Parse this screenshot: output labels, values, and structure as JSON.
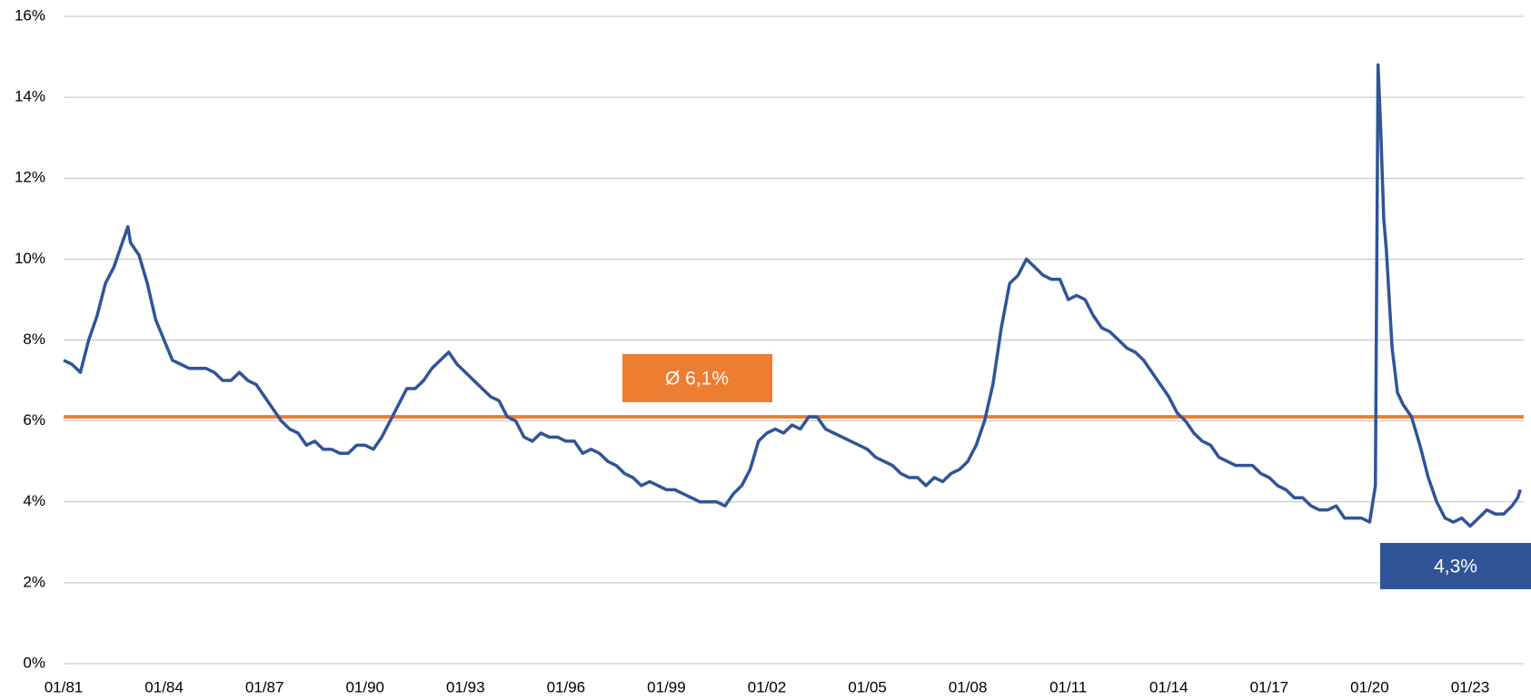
{
  "chart_data": {
    "type": "line",
    "x": [
      1981.0,
      1981.25,
      1981.5,
      1981.75,
      1982.0,
      1982.25,
      1982.5,
      1982.75,
      1982.92,
      1983.0,
      1983.25,
      1983.5,
      1983.75,
      1984.0,
      1984.25,
      1984.5,
      1984.75,
      1985.0,
      1985.25,
      1985.5,
      1985.75,
      1986.0,
      1986.25,
      1986.5,
      1986.75,
      1987.0,
      1987.25,
      1987.5,
      1987.75,
      1988.0,
      1988.25,
      1988.5,
      1988.75,
      1989.0,
      1989.25,
      1989.5,
      1989.75,
      1990.0,
      1990.25,
      1990.5,
      1990.75,
      1991.0,
      1991.25,
      1991.5,
      1991.75,
      1992.0,
      1992.25,
      1992.5,
      1992.75,
      1993.0,
      1993.25,
      1993.5,
      1993.75,
      1994.0,
      1994.25,
      1994.5,
      1994.75,
      1995.0,
      1995.25,
      1995.5,
      1995.75,
      1996.0,
      1996.25,
      1996.5,
      1996.75,
      1997.0,
      1997.25,
      1997.5,
      1997.75,
      1998.0,
      1998.25,
      1998.5,
      1998.75,
      1999.0,
      1999.25,
      1999.5,
      1999.75,
      2000.0,
      2000.25,
      2000.5,
      2000.75,
      2001.0,
      2001.25,
      2001.5,
      2001.75,
      2002.0,
      2002.25,
      2002.5,
      2002.75,
      2003.0,
      2003.25,
      2003.5,
      2003.75,
      2004.0,
      2004.25,
      2004.5,
      2004.75,
      2005.0,
      2005.25,
      2005.5,
      2005.75,
      2006.0,
      2006.25,
      2006.5,
      2006.75,
      2007.0,
      2007.25,
      2007.5,
      2007.75,
      2008.0,
      2008.25,
      2008.5,
      2008.75,
      2009.0,
      2009.25,
      2009.5,
      2009.75,
      2010.0,
      2010.25,
      2010.5,
      2010.75,
      2011.0,
      2011.25,
      2011.5,
      2011.75,
      2012.0,
      2012.25,
      2012.5,
      2012.75,
      2013.0,
      2013.25,
      2013.5,
      2013.75,
      2014.0,
      2014.25,
      2014.5,
      2014.75,
      2015.0,
      2015.25,
      2015.5,
      2015.75,
      2016.0,
      2016.25,
      2016.5,
      2016.75,
      2017.0,
      2017.25,
      2017.5,
      2017.75,
      2018.0,
      2018.25,
      2018.5,
      2018.75,
      2019.0,
      2019.25,
      2019.5,
      2019.75,
      2020.0,
      2020.17,
      2020.25,
      2020.33,
      2020.42,
      2020.5,
      2020.67,
      2020.83,
      2021.0,
      2021.25,
      2021.5,
      2021.75,
      2022.0,
      2022.25,
      2022.5,
      2022.75,
      2023.0,
      2023.25,
      2023.5,
      2023.75,
      2024.0,
      2024.25,
      2024.42,
      2024.5
    ],
    "series": [
      {
        "color": "#2f5597",
        "values": [
          7.5,
          7.4,
          7.2,
          8.0,
          8.6,
          9.4,
          9.8,
          10.4,
          10.8,
          10.4,
          10.1,
          9.4,
          8.5,
          8.0,
          7.5,
          7.4,
          7.3,
          7.3,
          7.3,
          7.2,
          7.0,
          7.0,
          7.2,
          7.0,
          6.9,
          6.6,
          6.3,
          6.0,
          5.8,
          5.7,
          5.4,
          5.5,
          5.3,
          5.3,
          5.2,
          5.2,
          5.4,
          5.4,
          5.3,
          5.6,
          6.0,
          6.4,
          6.8,
          6.8,
          7.0,
          7.3,
          7.5,
          7.7,
          7.4,
          7.2,
          7.0,
          6.8,
          6.6,
          6.5,
          6.1,
          6.0,
          5.6,
          5.5,
          5.7,
          5.6,
          5.6,
          5.5,
          5.5,
          5.2,
          5.3,
          5.2,
          5.0,
          4.9,
          4.7,
          4.6,
          4.4,
          4.5,
          4.4,
          4.3,
          4.3,
          4.2,
          4.1,
          4.0,
          4.0,
          4.0,
          3.9,
          4.2,
          4.4,
          4.8,
          5.5,
          5.7,
          5.8,
          5.7,
          5.9,
          5.8,
          6.1,
          6.1,
          5.8,
          5.7,
          5.6,
          5.5,
          5.4,
          5.3,
          5.1,
          5.0,
          4.9,
          4.7,
          4.6,
          4.6,
          4.4,
          4.6,
          4.5,
          4.7,
          4.8,
          5.0,
          5.4,
          6.0,
          6.9,
          8.3,
          9.4,
          9.6,
          10.0,
          9.8,
          9.6,
          9.5,
          9.5,
          9.0,
          9.1,
          9.0,
          8.6,
          8.3,
          8.2,
          8.0,
          7.8,
          7.7,
          7.5,
          7.2,
          6.9,
          6.6,
          6.2,
          6.0,
          5.7,
          5.5,
          5.4,
          5.1,
          5.0,
          4.9,
          4.9,
          4.9,
          4.7,
          4.6,
          4.4,
          4.3,
          4.1,
          4.1,
          3.9,
          3.8,
          3.8,
          3.9,
          3.6,
          3.6,
          3.6,
          3.5,
          4.4,
          14.8,
          13.2,
          11.0,
          10.2,
          7.8,
          6.7,
          6.4,
          6.1,
          5.4,
          4.6,
          4.0,
          3.6,
          3.5,
          3.6,
          3.4,
          3.6,
          3.8,
          3.7,
          3.7,
          3.9,
          4.1,
          4.3
        ]
      }
    ],
    "average": 6.1,
    "average_color": "#ed7d31",
    "average_label": "Ø 6,1%",
    "last_value_label": "4,3%",
    "xlim": [
      1981,
      2024.6
    ],
    "xticks": [
      {
        "value": 1981,
        "label": "01/81"
      },
      {
        "value": 1984,
        "label": "01/84"
      },
      {
        "value": 1987,
        "label": "01/87"
      },
      {
        "value": 1990,
        "label": "01/90"
      },
      {
        "value": 1993,
        "label": "01/93"
      },
      {
        "value": 1996,
        "label": "01/96"
      },
      {
        "value": 1999,
        "label": "01/99"
      },
      {
        "value": 2002,
        "label": "01/02"
      },
      {
        "value": 2005,
        "label": "01/05"
      },
      {
        "value": 2008,
        "label": "01/08"
      },
      {
        "value": 2011,
        "label": "01/11"
      },
      {
        "value": 2014,
        "label": "01/14"
      },
      {
        "value": 2017,
        "label": "01/17"
      },
      {
        "value": 2020,
        "label": "01/20"
      },
      {
        "value": 2023,
        "label": "01/23"
      }
    ],
    "ylim": [
      0,
      16
    ],
    "yticks": [
      {
        "value": 0,
        "label": "0%"
      },
      {
        "value": 2,
        "label": "2%"
      },
      {
        "value": 4,
        "label": "4%"
      },
      {
        "value": 6,
        "label": "6%"
      },
      {
        "value": 8,
        "label": "8%"
      },
      {
        "value": 10,
        "label": "10%"
      },
      {
        "value": 12,
        "label": "12%"
      },
      {
        "value": 14,
        "label": "14%"
      },
      {
        "value": 16,
        "label": "16%"
      }
    ],
    "grid": true
  }
}
